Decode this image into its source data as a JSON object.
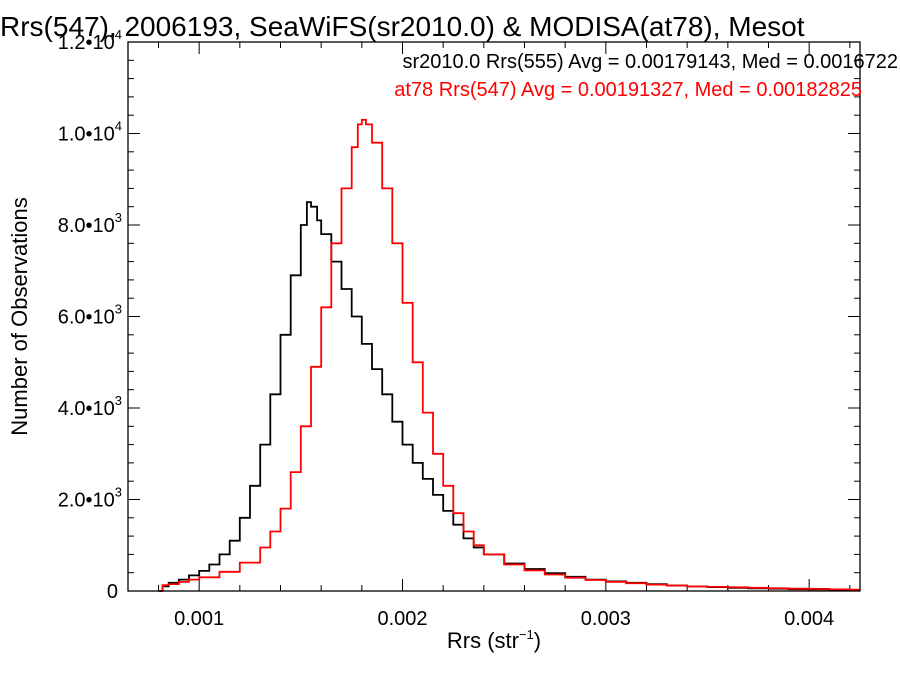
{
  "chart_data": {
    "type": "line",
    "title": "Rrs(547), 2006193, SeaWiFS(sr2010.0) & MODISA(at78), Mesot",
    "xlabel": "Rrs (str",
    "xlabel_exponent": "−1",
    "xlabel_suffix": ")",
    "ylabel": "Number of Observations",
    "xlim": [
      0.00065,
      0.00425
    ],
    "ylim": [
      0,
      12000
    ],
    "x_ticks": [
      {
        "value": 0.001,
        "label": "0.001"
      },
      {
        "value": 0.002,
        "label": "0.002"
      },
      {
        "value": 0.003,
        "label": "0.003"
      },
      {
        "value": 0.004,
        "label": "0.004"
      }
    ],
    "y_ticks": [
      {
        "value": 0,
        "label": "0",
        "exponent": ""
      },
      {
        "value": 2000,
        "label": "2.0•10",
        "exponent": "3"
      },
      {
        "value": 4000,
        "label": "4.0•10",
        "exponent": "3"
      },
      {
        "value": 6000,
        "label": "6.0•10",
        "exponent": "3"
      },
      {
        "value": 8000,
        "label": "8.0•10",
        "exponent": "3"
      },
      {
        "value": 10000,
        "label": "1.0•10",
        "exponent": "4"
      },
      {
        "value": 12000,
        "label": "1.2•10",
        "exponent": "4"
      }
    ],
    "legend": [
      {
        "text": "sr2010.0 Rrs(555) Avg = 0.00179143, Med = 0.0016722",
        "color": "#000000"
      },
      {
        "text": "at78 Rrs(547) Avg = 0.00191327, Med = 0.00182825",
        "color": "#ff0000"
      }
    ],
    "legend_placement": "top-right",
    "grid": false,
    "series": [
      {
        "color": "#000000",
        "points": [
          [
            0.0008,
            0
          ],
          [
            0.00082,
            100
          ],
          [
            0.00085,
            180
          ],
          [
            0.0009,
            250
          ],
          [
            0.00095,
            340
          ],
          [
            0.001,
            440
          ],
          [
            0.00105,
            580
          ],
          [
            0.0011,
            800
          ],
          [
            0.00115,
            1100
          ],
          [
            0.0012,
            1600
          ],
          [
            0.00125,
            2300
          ],
          [
            0.0013,
            3200
          ],
          [
            0.00135,
            4300
          ],
          [
            0.0014,
            5600
          ],
          [
            0.00145,
            6900
          ],
          [
            0.0015,
            8000
          ],
          [
            0.00153,
            8500
          ],
          [
            0.00155,
            8400
          ],
          [
            0.00158,
            8100
          ],
          [
            0.0016,
            7800
          ],
          [
            0.00165,
            7200
          ],
          [
            0.0017,
            6600
          ],
          [
            0.00175,
            6000
          ],
          [
            0.0018,
            5400
          ],
          [
            0.00185,
            4850
          ],
          [
            0.0019,
            4300
          ],
          [
            0.00195,
            3700
          ],
          [
            0.002,
            3200
          ],
          [
            0.00205,
            2800
          ],
          [
            0.0021,
            2450
          ],
          [
            0.00215,
            2100
          ],
          [
            0.0022,
            1750
          ],
          [
            0.00225,
            1450
          ],
          [
            0.0023,
            1150
          ],
          [
            0.00235,
            950
          ],
          [
            0.0024,
            800
          ],
          [
            0.0025,
            600
          ],
          [
            0.0026,
            480
          ],
          [
            0.0027,
            390
          ],
          [
            0.0028,
            310
          ],
          [
            0.0029,
            250
          ],
          [
            0.003,
            210
          ],
          [
            0.0031,
            180
          ],
          [
            0.0032,
            150
          ],
          [
            0.0033,
            120
          ],
          [
            0.0034,
            100
          ],
          [
            0.0035,
            85
          ],
          [
            0.0036,
            70
          ],
          [
            0.0037,
            60
          ],
          [
            0.0038,
            50
          ],
          [
            0.0039,
            40
          ],
          [
            0.004,
            35
          ],
          [
            0.0041,
            30
          ],
          [
            0.0042,
            20
          ]
        ]
      },
      {
        "color": "#ff0000",
        "points": [
          [
            0.0008,
            0
          ],
          [
            0.00082,
            130
          ],
          [
            0.00085,
            150
          ],
          [
            0.0009,
            200
          ],
          [
            0.00095,
            250
          ],
          [
            0.001,
            300
          ],
          [
            0.0011,
            420
          ],
          [
            0.0012,
            620
          ],
          [
            0.0013,
            950
          ],
          [
            0.00135,
            1300
          ],
          [
            0.0014,
            1800
          ],
          [
            0.00145,
            2600
          ],
          [
            0.0015,
            3600
          ],
          [
            0.00155,
            4900
          ],
          [
            0.0016,
            6200
          ],
          [
            0.00165,
            7600
          ],
          [
            0.0017,
            8800
          ],
          [
            0.00175,
            9700
          ],
          [
            0.00178,
            10200
          ],
          [
            0.0018,
            10300
          ],
          [
            0.00182,
            10200
          ],
          [
            0.00185,
            9800
          ],
          [
            0.0019,
            8800
          ],
          [
            0.00195,
            7600
          ],
          [
            0.002,
            6300
          ],
          [
            0.00205,
            5000
          ],
          [
            0.0021,
            3900
          ],
          [
            0.00215,
            3000
          ],
          [
            0.0022,
            2300
          ],
          [
            0.00225,
            1700
          ],
          [
            0.0023,
            1300
          ],
          [
            0.00235,
            1000
          ],
          [
            0.0024,
            800
          ],
          [
            0.0025,
            580
          ],
          [
            0.0026,
            450
          ],
          [
            0.0027,
            360
          ],
          [
            0.0028,
            290
          ],
          [
            0.0029,
            240
          ],
          [
            0.003,
            200
          ],
          [
            0.0031,
            170
          ],
          [
            0.0032,
            140
          ],
          [
            0.0033,
            120
          ],
          [
            0.0034,
            100
          ],
          [
            0.0035,
            90
          ],
          [
            0.0036,
            80
          ],
          [
            0.0037,
            70
          ],
          [
            0.0038,
            60
          ],
          [
            0.0039,
            50
          ],
          [
            0.004,
            45
          ],
          [
            0.0041,
            35
          ],
          [
            0.0042,
            30
          ]
        ]
      }
    ]
  }
}
